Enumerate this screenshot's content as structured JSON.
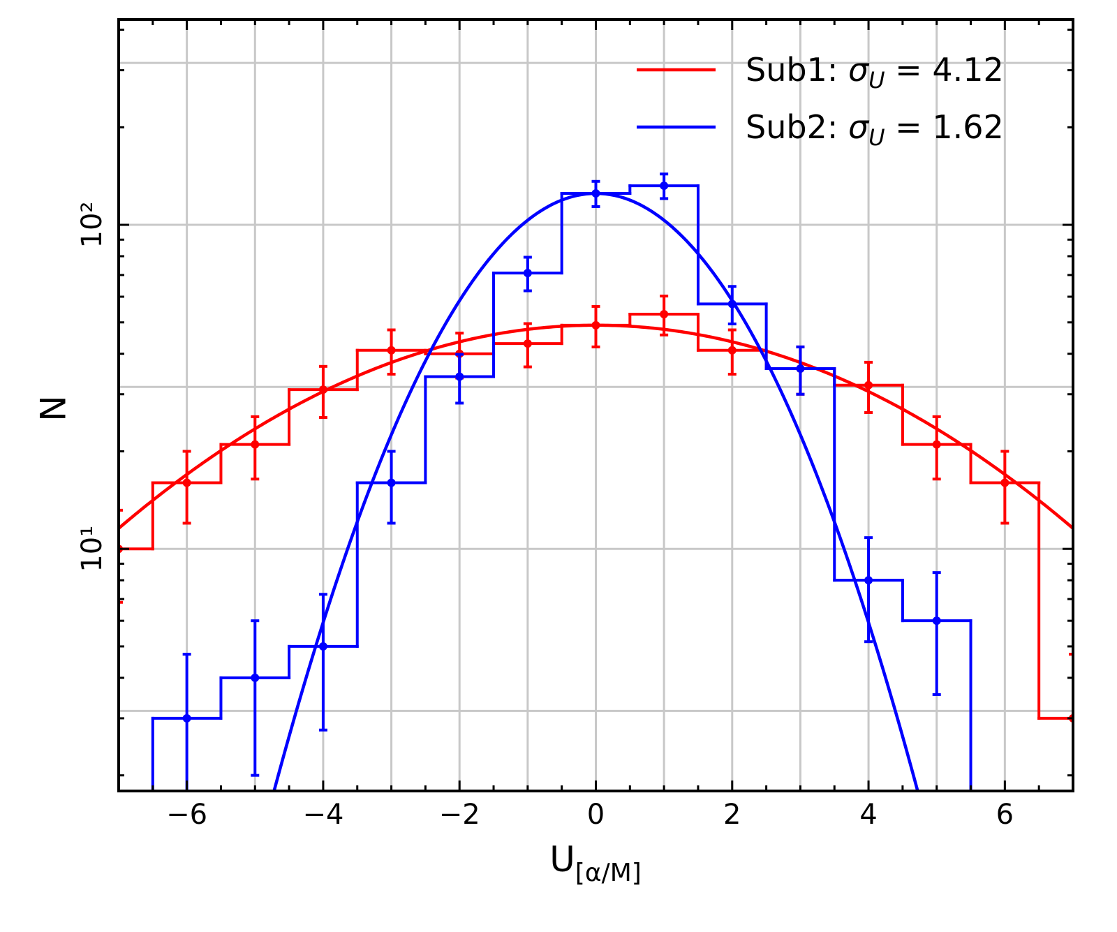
{
  "chart_data": {
    "type": "histogram",
    "xlabel": "U",
    "xlabel_subscript": "[α/M]",
    "ylabel": "N",
    "xlim": [
      -7,
      7
    ],
    "ylim": [
      1.79,
      430
    ],
    "log_y": true,
    "grid": true,
    "xticks": [
      {
        "value": -6,
        "label": "−6"
      },
      {
        "value": -4,
        "label": "−4"
      },
      {
        "value": -2,
        "label": "−2"
      },
      0,
      2,
      4,
      6
    ],
    "xminor_ticks": [
      -6.5,
      -5.5,
      -5,
      -4.5,
      -3.5,
      -3,
      -2.5,
      -1.5,
      -1,
      -0.5,
      0.5,
      1,
      1.5,
      2.5,
      3,
      3.5,
      4.5,
      5,
      5.5,
      6.5
    ],
    "xgrid": [
      -6,
      -5,
      -4,
      -3,
      -2,
      -1,
      0,
      1,
      2,
      3,
      4,
      5,
      6
    ],
    "yticks": [
      {
        "value": 10,
        "label": "10¹"
      },
      {
        "value": 100,
        "label": "10²"
      }
    ],
    "yminor_ticks": [
      2,
      3,
      4,
      5,
      6,
      7,
      8,
      9,
      20,
      30,
      40,
      50,
      60,
      70,
      80,
      90,
      200,
      300,
      400
    ],
    "ygrid": [
      3.16,
      10,
      31.6,
      100,
      316
    ],
    "bins": [
      -7.5,
      -6.5,
      -5.5,
      -4.5,
      -3.5,
      -2.5,
      -1.5,
      -0.5,
      0.5,
      1.5,
      2.5,
      3.5,
      4.5,
      5.5,
      6.5,
      7.5
    ],
    "legend_location": "upper right",
    "legend_format": {
      "separator": ": ",
      "symbol": "σ",
      "subscript": "U",
      "equals": " = "
    },
    "series": [
      {
        "name": "Sub1",
        "color": "#ff0000",
        "values": [
          10,
          16,
          21,
          31,
          41,
          40,
          43,
          49,
          53,
          41,
          36,
          32,
          21,
          16,
          3
        ],
        "errors": [
          3.16,
          4,
          4.58,
          5.57,
          6.4,
          6.32,
          6.56,
          7,
          7.28,
          6.4,
          6,
          5.66,
          4.58,
          4,
          1.73
        ],
        "fit": {
          "amplitude": 49,
          "mu": 0,
          "sigma": 4.12
        }
      },
      {
        "name": "Sub2",
        "color": "#0000ff",
        "values": [
          0,
          3,
          4,
          5,
          16,
          34,
          71,
          125,
          132,
          57,
          36,
          8,
          6,
          0,
          0
        ],
        "errors": [
          null,
          1.73,
          2,
          2.24,
          4,
          5.83,
          8.43,
          11.18,
          11.49,
          7.55,
          6,
          2.83,
          2.45,
          null,
          null
        ],
        "fit": {
          "amplitude": 125,
          "mu": 0,
          "sigma": 1.62
        }
      }
    ]
  }
}
